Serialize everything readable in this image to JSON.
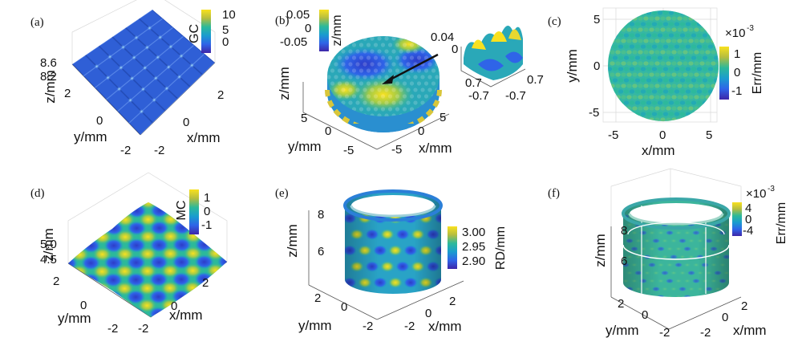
{
  "chart_data": [
    {
      "panel": "(a)",
      "type": "surface",
      "xlabel": "x/mm",
      "ylabel": "y/mm",
      "zlabel": "z/mm",
      "x_ticks": [
        "2",
        "0",
        "-2"
      ],
      "y_ticks": [
        "2",
        "0",
        "-2"
      ],
      "z_ticks": [
        "8.6",
        "8.2"
      ],
      "colorbar": {
        "label": "GC",
        "ticks": [
          "10",
          "5",
          "0"
        ],
        "range": [
          -3,
          12
        ]
      }
    },
    {
      "panel": "(b)",
      "type": "surface",
      "xlabel": "x/mm",
      "ylabel": "y/mm",
      "zlabel": "z/mm",
      "x_ticks": [
        "5",
        "0",
        "-5"
      ],
      "y_ticks": [
        "5",
        "0",
        "-5"
      ],
      "colorbar": {
        "label": "z/mm",
        "ticks": [
          "0.05",
          "0",
          "-0.05"
        ],
        "range": [
          -0.07,
          0.07
        ]
      },
      "inset": {
        "z_ticks": [
          "0.04",
          "0"
        ],
        "x_ticks": [
          "0.7",
          "-0.7"
        ],
        "y_ticks": [
          "0.7",
          "-0.7"
        ]
      }
    },
    {
      "panel": "(c)",
      "type": "heatmap",
      "xlabel": "x/mm",
      "ylabel": "y/mm",
      "x_ticks": [
        "-5",
        "0",
        "5"
      ],
      "y_ticks": [
        "5",
        "0",
        "-5"
      ],
      "colorbar": {
        "label": "Err/mm",
        "exponent": "×10",
        "exponent_power": "-3",
        "ticks": [
          "1",
          "0",
          "-1"
        ],
        "range": [
          -1.5,
          1.5
        ]
      }
    },
    {
      "panel": "(d)",
      "type": "surface",
      "xlabel": "x/mm",
      "ylabel": "y/mm",
      "zlabel": "z/mm",
      "x_ticks": [
        "2",
        "0",
        "-2"
      ],
      "y_ticks": [
        "2",
        "0",
        "-2"
      ],
      "z_ticks": [
        "5.0",
        "4.5"
      ],
      "colorbar": {
        "label": "MC",
        "ticks": [
          "1",
          "0",
          "-1"
        ],
        "range": [
          -1.6,
          1.6
        ]
      }
    },
    {
      "panel": "(e)",
      "type": "surface",
      "xlabel": "x/mm",
      "ylabel": "y/mm",
      "zlabel": "z/mm",
      "x_ticks": [
        "2",
        "0",
        "-2"
      ],
      "y_ticks": [
        "2",
        "0",
        "-2"
      ],
      "z_ticks": [
        "8",
        "6"
      ],
      "colorbar": {
        "label": "RD/mm",
        "ticks": [
          "3.00",
          "2.95",
          "2.90"
        ],
        "range": [
          2.88,
          3.02
        ]
      }
    },
    {
      "panel": "(f)",
      "type": "surface",
      "xlabel": "x/mm",
      "ylabel": "y/mm",
      "zlabel": "z/mm",
      "x_ticks": [
        "2",
        "0",
        "-2"
      ],
      "y_ticks": [
        "2",
        "0",
        "-2"
      ],
      "z_ticks": [
        "8",
        "6"
      ],
      "colorbar": {
        "label": "Err/mm",
        "exponent": "×10",
        "exponent_power": "-3",
        "ticks": [
          "4",
          "0",
          "-4"
        ],
        "range": [
          -6,
          6
        ]
      }
    }
  ]
}
